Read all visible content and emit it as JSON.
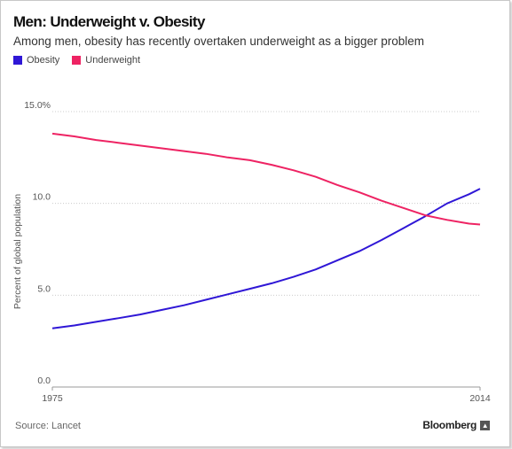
{
  "header": {
    "title": "Men: Underweight v. Obesity",
    "subtitle": "Among men, obesity has recently overtaken underweight as a bigger problem"
  },
  "footer": {
    "source": "Source: Lancet",
    "brand": "Bloomberg",
    "brand_icon": "bloomberg-logo-icon"
  },
  "chart_data": {
    "type": "line",
    "title": "Men: Underweight v. Obesity",
    "subtitle": "Among men, obesity has recently overtaken underweight as a bigger problem",
    "ylabel": "Percent of global population",
    "xlabel": "",
    "xlim": [
      1975,
      2014
    ],
    "ylim": [
      0,
      15
    ],
    "x_tick_labels": [
      "1975",
      "2014"
    ],
    "y_tick_labels": [
      "0.0",
      "5.0",
      "10.0",
      "15.0%"
    ],
    "y_ticks": [
      0,
      5,
      10,
      15
    ],
    "grid": true,
    "legend_position": "top-left",
    "series": [
      {
        "name": "Obesity",
        "color": "#2f17d6",
        "x": [
          1975,
          1977,
          1979,
          1981,
          1983,
          1985,
          1987,
          1989,
          1991,
          1993,
          1995,
          1997,
          1999,
          2001,
          2003,
          2005,
          2007,
          2009,
          2011,
          2013,
          2014
        ],
        "values": [
          3.2,
          3.35,
          3.55,
          3.75,
          3.95,
          4.2,
          4.45,
          4.75,
          5.05,
          5.35,
          5.65,
          6.0,
          6.4,
          6.9,
          7.4,
          8.0,
          8.65,
          9.3,
          10.0,
          10.5,
          10.8
        ]
      },
      {
        "name": "Underweight",
        "color": "#ee2363",
        "x": [
          1975,
          1977,
          1979,
          1981,
          1983,
          1985,
          1987,
          1989,
          1991,
          1993,
          1995,
          1997,
          1999,
          2001,
          2003,
          2005,
          2007,
          2009,
          2011,
          2013,
          2014
        ],
        "values": [
          13.8,
          13.65,
          13.45,
          13.3,
          13.15,
          13.0,
          12.85,
          12.7,
          12.5,
          12.35,
          12.1,
          11.8,
          11.45,
          11.0,
          10.6,
          10.15,
          9.75,
          9.35,
          9.1,
          8.9,
          8.85
        ]
      }
    ]
  }
}
